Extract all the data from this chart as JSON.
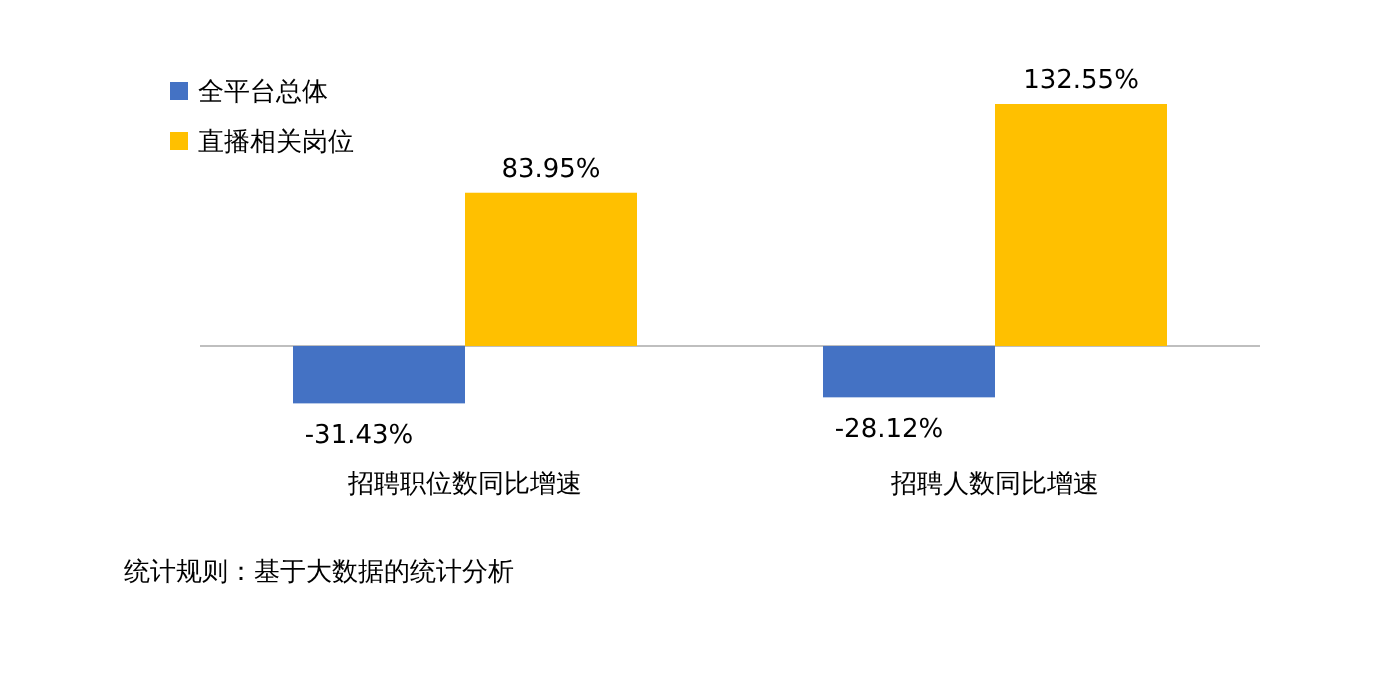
{
  "chart_data": {
    "type": "bar",
    "categories": [
      "招聘职位数同比增速",
      "招聘人数同比增速"
    ],
    "series": [
      {
        "name": "全平台总体",
        "color": "#4472c4",
        "values": [
          -31.43,
          -28.12
        ],
        "value_labels": [
          "-31.43%",
          "-28.12%"
        ]
      },
      {
        "name": "直播相关岗位",
        "color": "#ffc000",
        "values": [
          83.95,
          132.55
        ],
        "value_labels": [
          "83.95%",
          "132.55%"
        ]
      }
    ],
    "legend": "top left",
    "annotations": [
      "统计规则：基于大数据的统计分析"
    ]
  }
}
